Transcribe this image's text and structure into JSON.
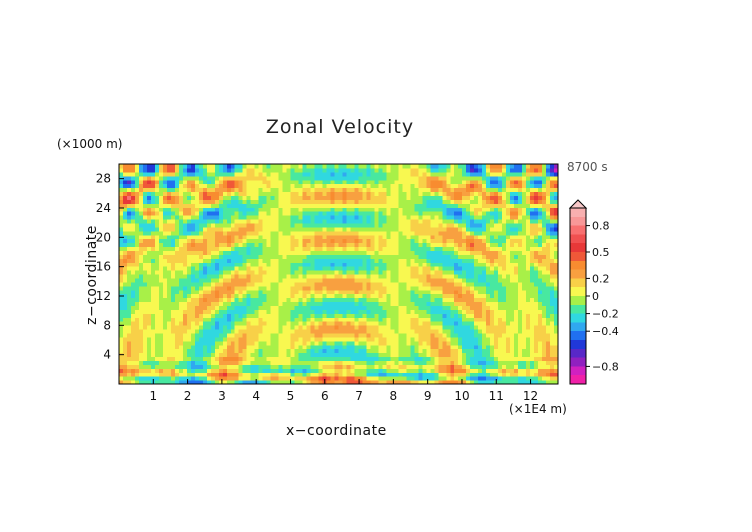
{
  "chart_data": {
    "type": "heatmap",
    "title": "Zonal Velocity",
    "xlabel": "x−coordinate",
    "ylabel": "z−coordinate",
    "x_unit": "(×1E4 m)",
    "y_unit": "(×1000 m)",
    "time_label": "8700 s",
    "xlim": [
      0,
      12.8
    ],
    "ylim": [
      0,
      30
    ],
    "x_ticks": [
      "1",
      "2",
      "3",
      "4",
      "5",
      "6",
      "7",
      "8",
      "9",
      "10",
      "11",
      "12"
    ],
    "y_ticks": [
      "4",
      "8",
      "12",
      "16",
      "20",
      "24",
      "28"
    ],
    "colorbar": {
      "tick_labels": [
        "0.8",
        "0.5",
        "0.2",
        "0",
        "−0.2",
        "−0.4",
        "−0.8"
      ],
      "tick_values": [
        0.8,
        0.5,
        0.2,
        0,
        -0.2,
        -0.4,
        -0.8
      ],
      "range": [
        -1.0,
        1.0
      ],
      "levels": [
        {
          "from": 0.9,
          "to": 1.0,
          "color": "#f8b0b0"
        },
        {
          "from": 0.8,
          "to": 0.9,
          "color": "#f89898"
        },
        {
          "from": 0.7,
          "to": 0.8,
          "color": "#f87070"
        },
        {
          "from": 0.6,
          "to": 0.7,
          "color": "#f05050"
        },
        {
          "from": 0.5,
          "to": 0.6,
          "color": "#e83838"
        },
        {
          "from": 0.4,
          "to": 0.5,
          "color": "#f05838"
        },
        {
          "from": 0.3,
          "to": 0.4,
          "color": "#f88c30"
        },
        {
          "from": 0.2,
          "to": 0.3,
          "color": "#f8a040"
        },
        {
          "from": 0.1,
          "to": 0.2,
          "color": "#f8d048"
        },
        {
          "from": 0.0,
          "to": 0.1,
          "color": "#f8f850"
        },
        {
          "from": -0.1,
          "to": 0.0,
          "color": "#a8f048"
        },
        {
          "from": -0.2,
          "to": -0.1,
          "color": "#48e8a0"
        },
        {
          "from": -0.3,
          "to": -0.2,
          "color": "#30d8e0"
        },
        {
          "from": -0.4,
          "to": -0.3,
          "color": "#30a8f0"
        },
        {
          "from": -0.5,
          "to": -0.4,
          "color": "#2070f0"
        },
        {
          "from": -0.6,
          "to": -0.5,
          "color": "#2038d8"
        },
        {
          "from": -0.7,
          "to": -0.6,
          "color": "#5828c8"
        },
        {
          "from": -0.8,
          "to": -0.7,
          "color": "#9020c0"
        },
        {
          "from": -0.9,
          "to": -0.8,
          "color": "#d020c0"
        },
        {
          "from": -1.0,
          "to": -0.9,
          "color": "#f020a8"
        }
      ]
    },
    "grid": false
  }
}
